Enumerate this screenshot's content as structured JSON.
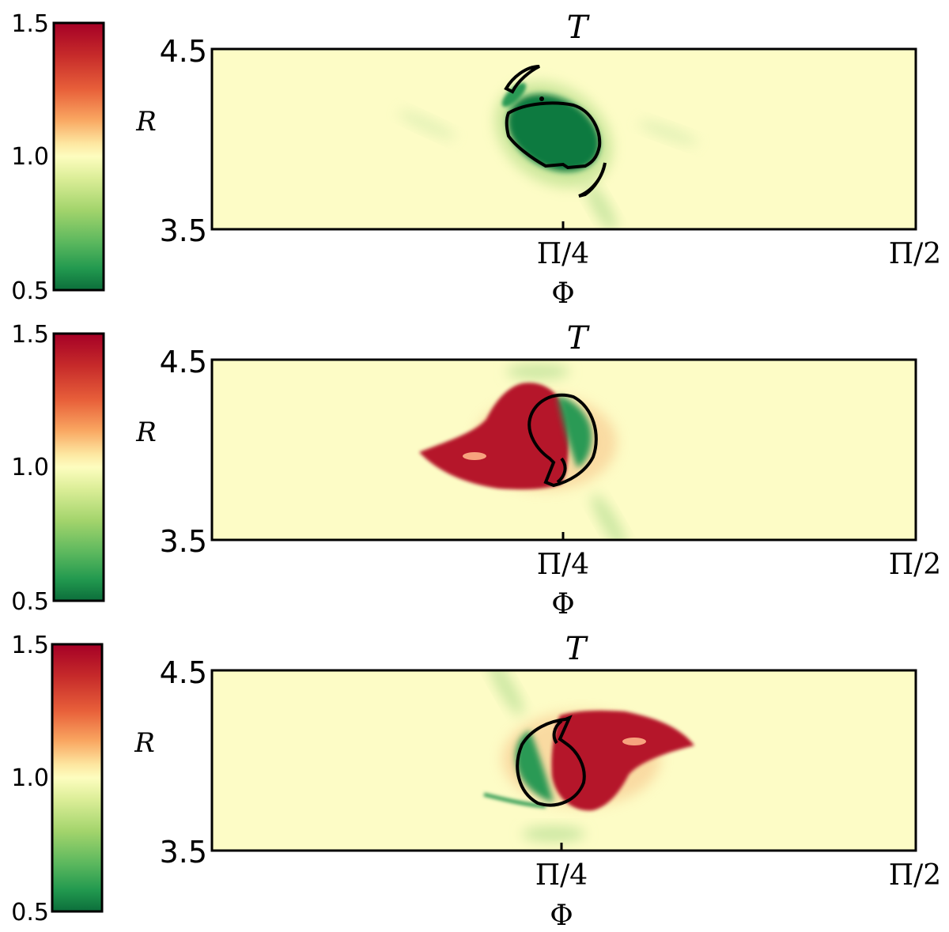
{
  "colorbar": {
    "ticks": [
      "1.5",
      "1.0",
      "0.5"
    ],
    "colors": [
      "#a50026",
      "#d73027",
      "#f46d43",
      "#fdae61",
      "#fee08b",
      "#ffffbf",
      "#d9ef8b",
      "#a6d96a",
      "#66bd63",
      "#1a9850",
      "#006837"
    ]
  },
  "background_color": "#fdfcc6",
  "chart_data": [
    {
      "type": "heatmap",
      "title": "T",
      "xlabel": "Φ",
      "ylabel": "R",
      "xticks": [
        "Π/4",
        "Π/2"
      ],
      "yticks": [
        "4.5",
        "3.5"
      ],
      "ylim": [
        3.5,
        4.5
      ],
      "clim": [
        0.5,
        1.5
      ],
      "features": [
        {
          "kind": "cold",
          "value": 0.5,
          "center": [
            0.77,
            4.05
          ]
        },
        {
          "kind": "contour",
          "shape": "spiral-pair"
        }
      ]
    },
    {
      "type": "heatmap",
      "title": "T",
      "xlabel": "Φ",
      "ylabel": "R",
      "xticks": [
        "Π/4",
        "Π/2"
      ],
      "yticks": [
        "4.5",
        "3.5"
      ],
      "ylim": [
        3.5,
        4.5
      ],
      "clim": [
        0.5,
        1.5
      ],
      "features": [
        {
          "kind": "hot",
          "value": 1.5,
          "center": [
            0.68,
            3.95
          ]
        },
        {
          "kind": "cold",
          "value": 0.7,
          "center": [
            0.8,
            4.1
          ]
        },
        {
          "kind": "contour",
          "shape": "hook"
        }
      ]
    },
    {
      "type": "heatmap",
      "title": "T",
      "xlabel": "Φ",
      "ylabel": "R",
      "xticks": [
        "Π/4",
        "Π/2"
      ],
      "yticks": [
        "4.5",
        "3.5"
      ],
      "ylim": [
        3.5,
        4.5
      ],
      "clim": [
        0.5,
        1.5
      ],
      "features": [
        {
          "kind": "hot",
          "value": 1.5,
          "center": [
            0.88,
            4.05
          ]
        },
        {
          "kind": "cold",
          "value": 0.7,
          "center": [
            0.74,
            3.9
          ]
        },
        {
          "kind": "contour",
          "shape": "hook"
        }
      ]
    }
  ]
}
